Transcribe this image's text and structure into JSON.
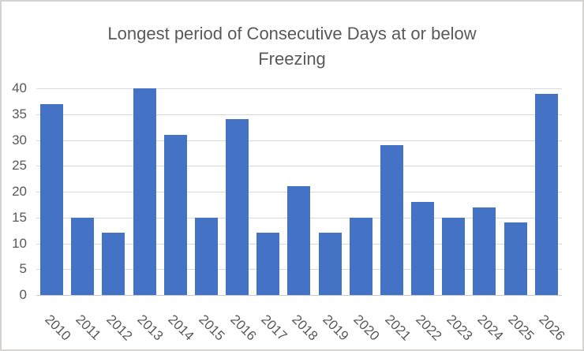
{
  "window": {
    "background_color": "#FFFFFF",
    "border_color": "#D6D4D2"
  },
  "chart_data": {
    "type": "bar",
    "title": "Longest period of Consecutive Days at or below Freezing",
    "categories": [
      "2010",
      "2011",
      "2012",
      "2013",
      "2014",
      "2015",
      "2016",
      "2017",
      "2018",
      "2019",
      "2020",
      "2021",
      "2022",
      "2023",
      "2024",
      "2025",
      "2026"
    ],
    "values": [
      37,
      15,
      12,
      40,
      31,
      15,
      34,
      12,
      21,
      12,
      15,
      29,
      18,
      15,
      17,
      14,
      39
    ],
    "xlabel": "",
    "ylabel": "",
    "ylim": [
      0,
      40
    ],
    "y_tick_step": 5,
    "y_tick_labels": [
      "0",
      "5",
      "10",
      "15",
      "20",
      "25",
      "30",
      "35",
      "40"
    ],
    "grid": true,
    "legend_position": "none",
    "x_label_rotation_deg": 45,
    "bar_color": "#4472C4",
    "gridline_color": "#D9D9D9",
    "axis_line_color": "#C9C9C9",
    "title_color": "#595959",
    "tick_label_color": "#595959"
  }
}
